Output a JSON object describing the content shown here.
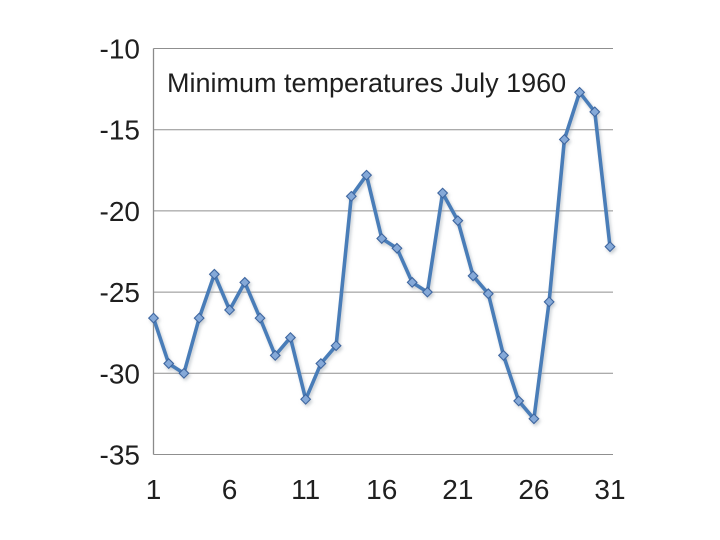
{
  "chart_data": {
    "type": "line",
    "title": "Minimum temperatures July 1960",
    "x": [
      1,
      2,
      3,
      4,
      5,
      6,
      7,
      8,
      9,
      10,
      11,
      12,
      13,
      14,
      15,
      16,
      17,
      18,
      19,
      20,
      21,
      22,
      23,
      24,
      25,
      26,
      27,
      28,
      29,
      30,
      31
    ],
    "values": [
      -26.6,
      -29.4,
      -30.0,
      -26.6,
      -23.9,
      -26.1,
      -24.4,
      -26.6,
      -28.9,
      -27.8,
      -31.6,
      -29.4,
      -28.3,
      -19.1,
      -17.8,
      -21.7,
      -22.3,
      -24.4,
      -25.0,
      -18.9,
      -20.6,
      -24.0,
      -25.1,
      -28.9,
      -31.7,
      -32.8,
      -25.6,
      -15.6,
      -12.7,
      -13.9,
      -22.2
    ],
    "xlabel": "",
    "ylabel": "",
    "xlim": [
      1,
      31
    ],
    "ylim": [
      -35,
      -10
    ],
    "yticks": [
      "-10",
      "-15",
      "-20",
      "-25",
      "-30",
      "-35"
    ],
    "ytick_values": [
      -10,
      -15,
      -20,
      -25,
      -30,
      -35
    ],
    "xticks": [
      "1",
      "6",
      "11",
      "16",
      "21",
      "26",
      "31"
    ],
    "xtick_values": [
      1,
      6,
      11,
      16,
      21,
      26,
      31
    ],
    "grid": "horizontal",
    "legend": "none",
    "marker": "diamond",
    "colors": {
      "line": "#4a7db8",
      "marker_fill": "#85a9d8",
      "marker_border": "#3e66a0",
      "gridline": "#8f8f8f",
      "axis": "#8a8a8a",
      "text": "#1f1f1f",
      "background": "#ffffff"
    }
  }
}
